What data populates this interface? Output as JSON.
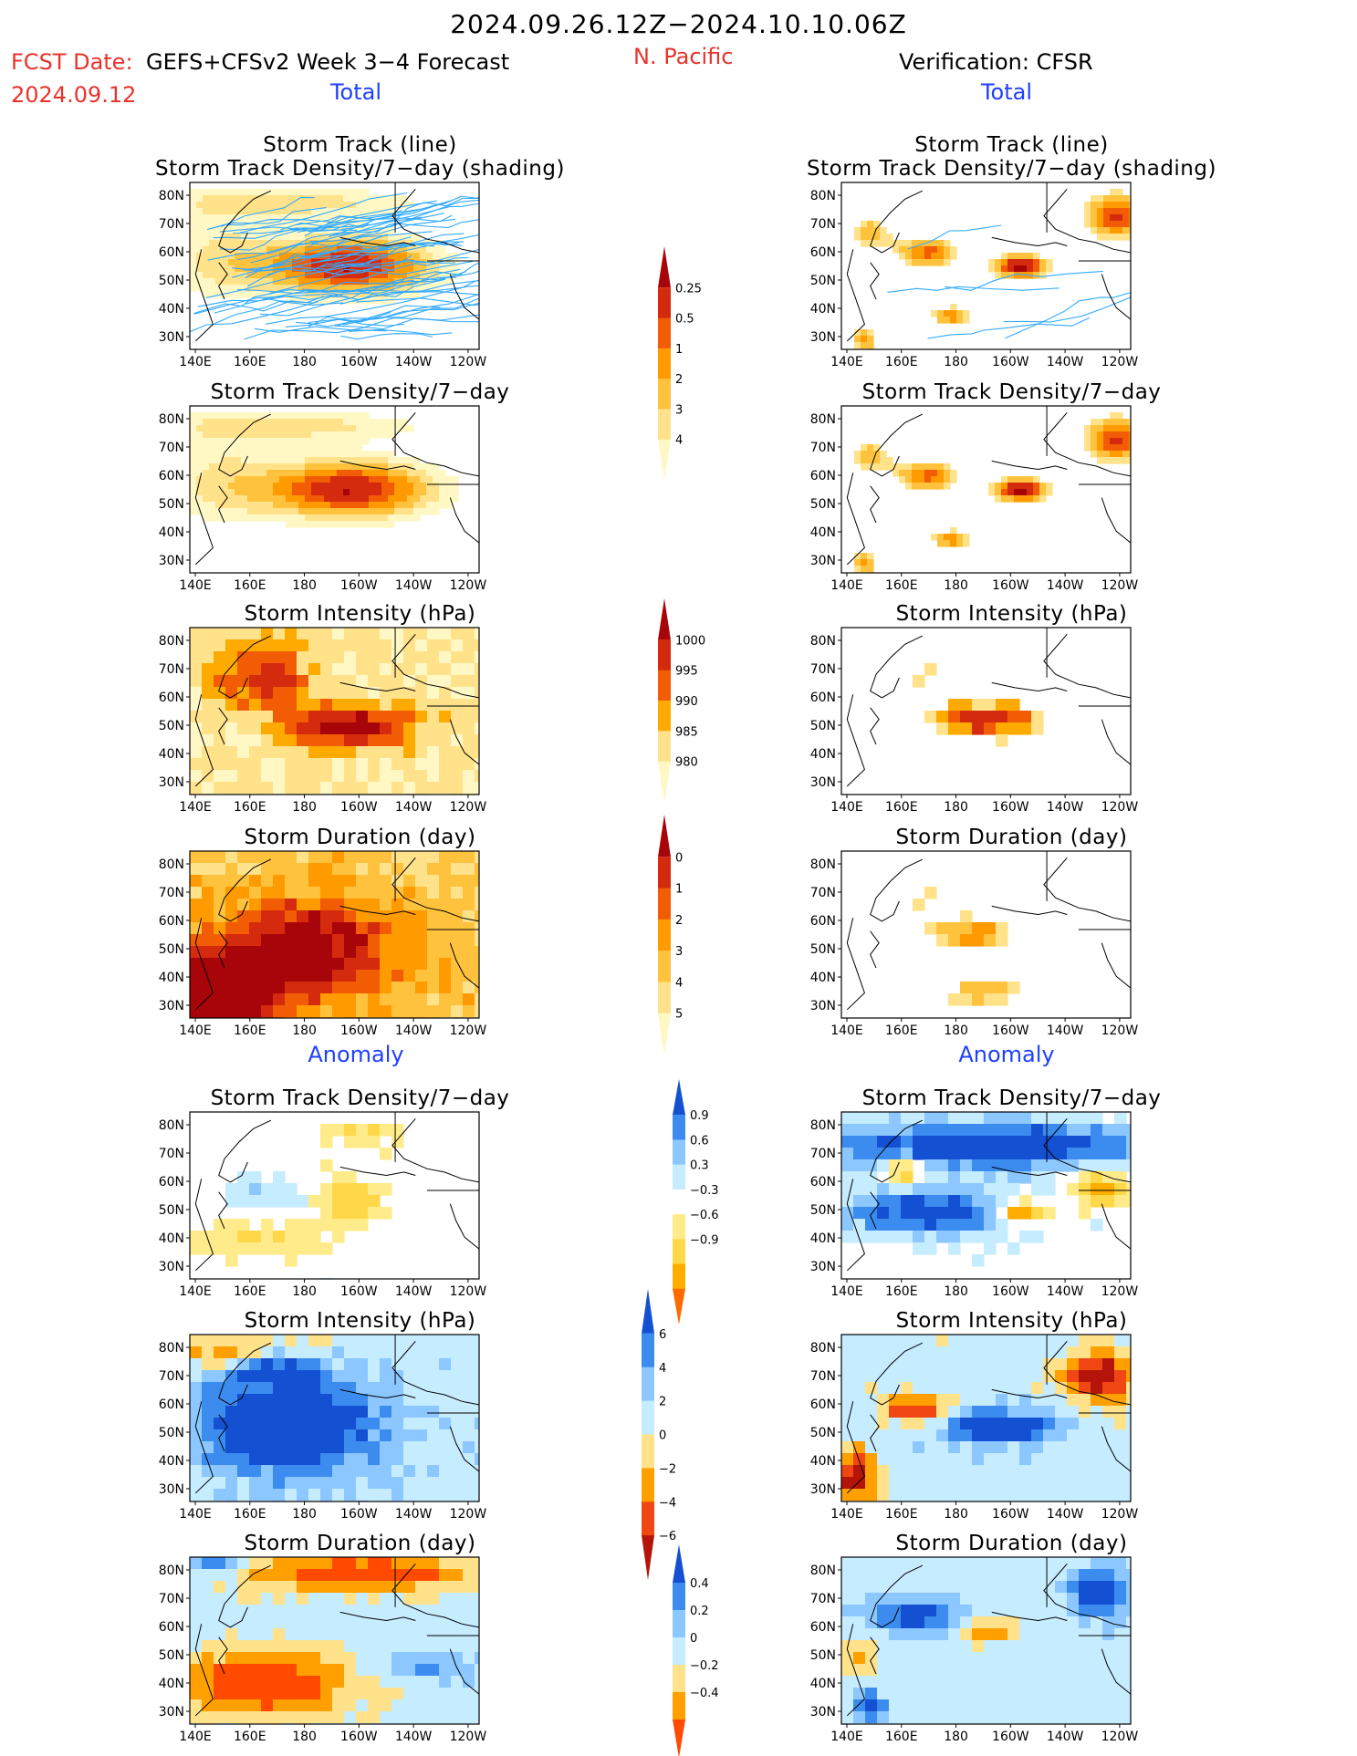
{
  "header": {
    "date_range": "2024.09.26.12Z−2024.10.10.06Z",
    "fcst_label": "FCST Date:",
    "fcst_model": "GEFS+CFSv2 Week 3−4 Forecast",
    "fcst_date": "2024.09.12",
    "region": "N. Pacific",
    "verification": "Verification: CFSR",
    "left_total": "Total",
    "right_total": "Total",
    "left_anomaly": "Anomaly",
    "right_anomaly": "Anomaly"
  },
  "panel_titles": {
    "storm_track_line": "Storm Track (line)",
    "storm_track_shading": "Storm Track Density/7−day (shading)",
    "storm_track_density": "Storm Track Density/7−day",
    "storm_intensity": "Storm Intensity (hPa)",
    "storm_duration": "Storm Duration (day)"
  },
  "chart_data": {
    "type": "heatmap",
    "x_ticks": [
      "140E",
      "160E",
      "180",
      "160W",
      "140W",
      "120W"
    ],
    "y_ticks": [
      "80N",
      "70N",
      "60N",
      "50N",
      "40N",
      "30N"
    ],
    "colorbars": [
      {
        "name": "Storm Track Density (total)",
        "levels": [
          "0.25",
          "0.5",
          "1",
          "2",
          "3",
          "4"
        ],
        "colors": [
          "#fff8c4",
          "#ffe28a",
          "#ffc23d",
          "#ff9a00",
          "#f25c05",
          "#d42a0d",
          "#a8050a"
        ]
      },
      {
        "name": "Storm Intensity (total)",
        "levels": [
          "1000",
          "995",
          "990",
          "985",
          "980"
        ],
        "colors": [
          "#fff8c4",
          "#ffe28a",
          "#ffaa00",
          "#f25c05",
          "#d42a0d",
          "#a8050a"
        ]
      },
      {
        "name": "Storm Duration (total)",
        "levels": [
          "0",
          "1",
          "2",
          "3",
          "4",
          "5"
        ],
        "colors": [
          "#fff8c4",
          "#ffe28a",
          "#ffc23d",
          "#ff9a00",
          "#f25c05",
          "#d42a0d",
          "#a8050a"
        ]
      },
      {
        "name": "Storm Track Density (anomaly)",
        "levels": [
          "0.9",
          "0.6",
          "0.3",
          "−0.3",
          "−0.6",
          "−0.9"
        ],
        "colors": [
          "#ff6a00",
          "#ffae00",
          "#ffd84a",
          "#ffeb8a",
          "#ffffff",
          "#c6ecff",
          "#8cc8ff",
          "#3c8cf0",
          "#1450d2"
        ]
      },
      {
        "name": "Storm Intensity (anomaly)",
        "levels": [
          "6",
          "4",
          "2",
          "0",
          "−2",
          "−4",
          "−6"
        ],
        "colors": [
          "#b4140a",
          "#f04614",
          "#ffa000",
          "#ffe28a",
          "#c6ecff",
          "#8cc8ff",
          "#3c8cf0",
          "#1450d2"
        ]
      },
      {
        "name": "Storm Duration (anomaly)",
        "levels": [
          "0.4",
          "0.2",
          "0",
          "−0.2",
          "−0.4"
        ],
        "colors": [
          "#ff4a00",
          "#ffa000",
          "#ffe28a",
          "#c6ecff",
          "#8cc8ff",
          "#3c8cf0",
          "#1450d2"
        ]
      }
    ]
  },
  "colors": {
    "title_red": "#e8332d",
    "title_blue": "#1f3fff",
    "track_line": "#33aaff"
  }
}
